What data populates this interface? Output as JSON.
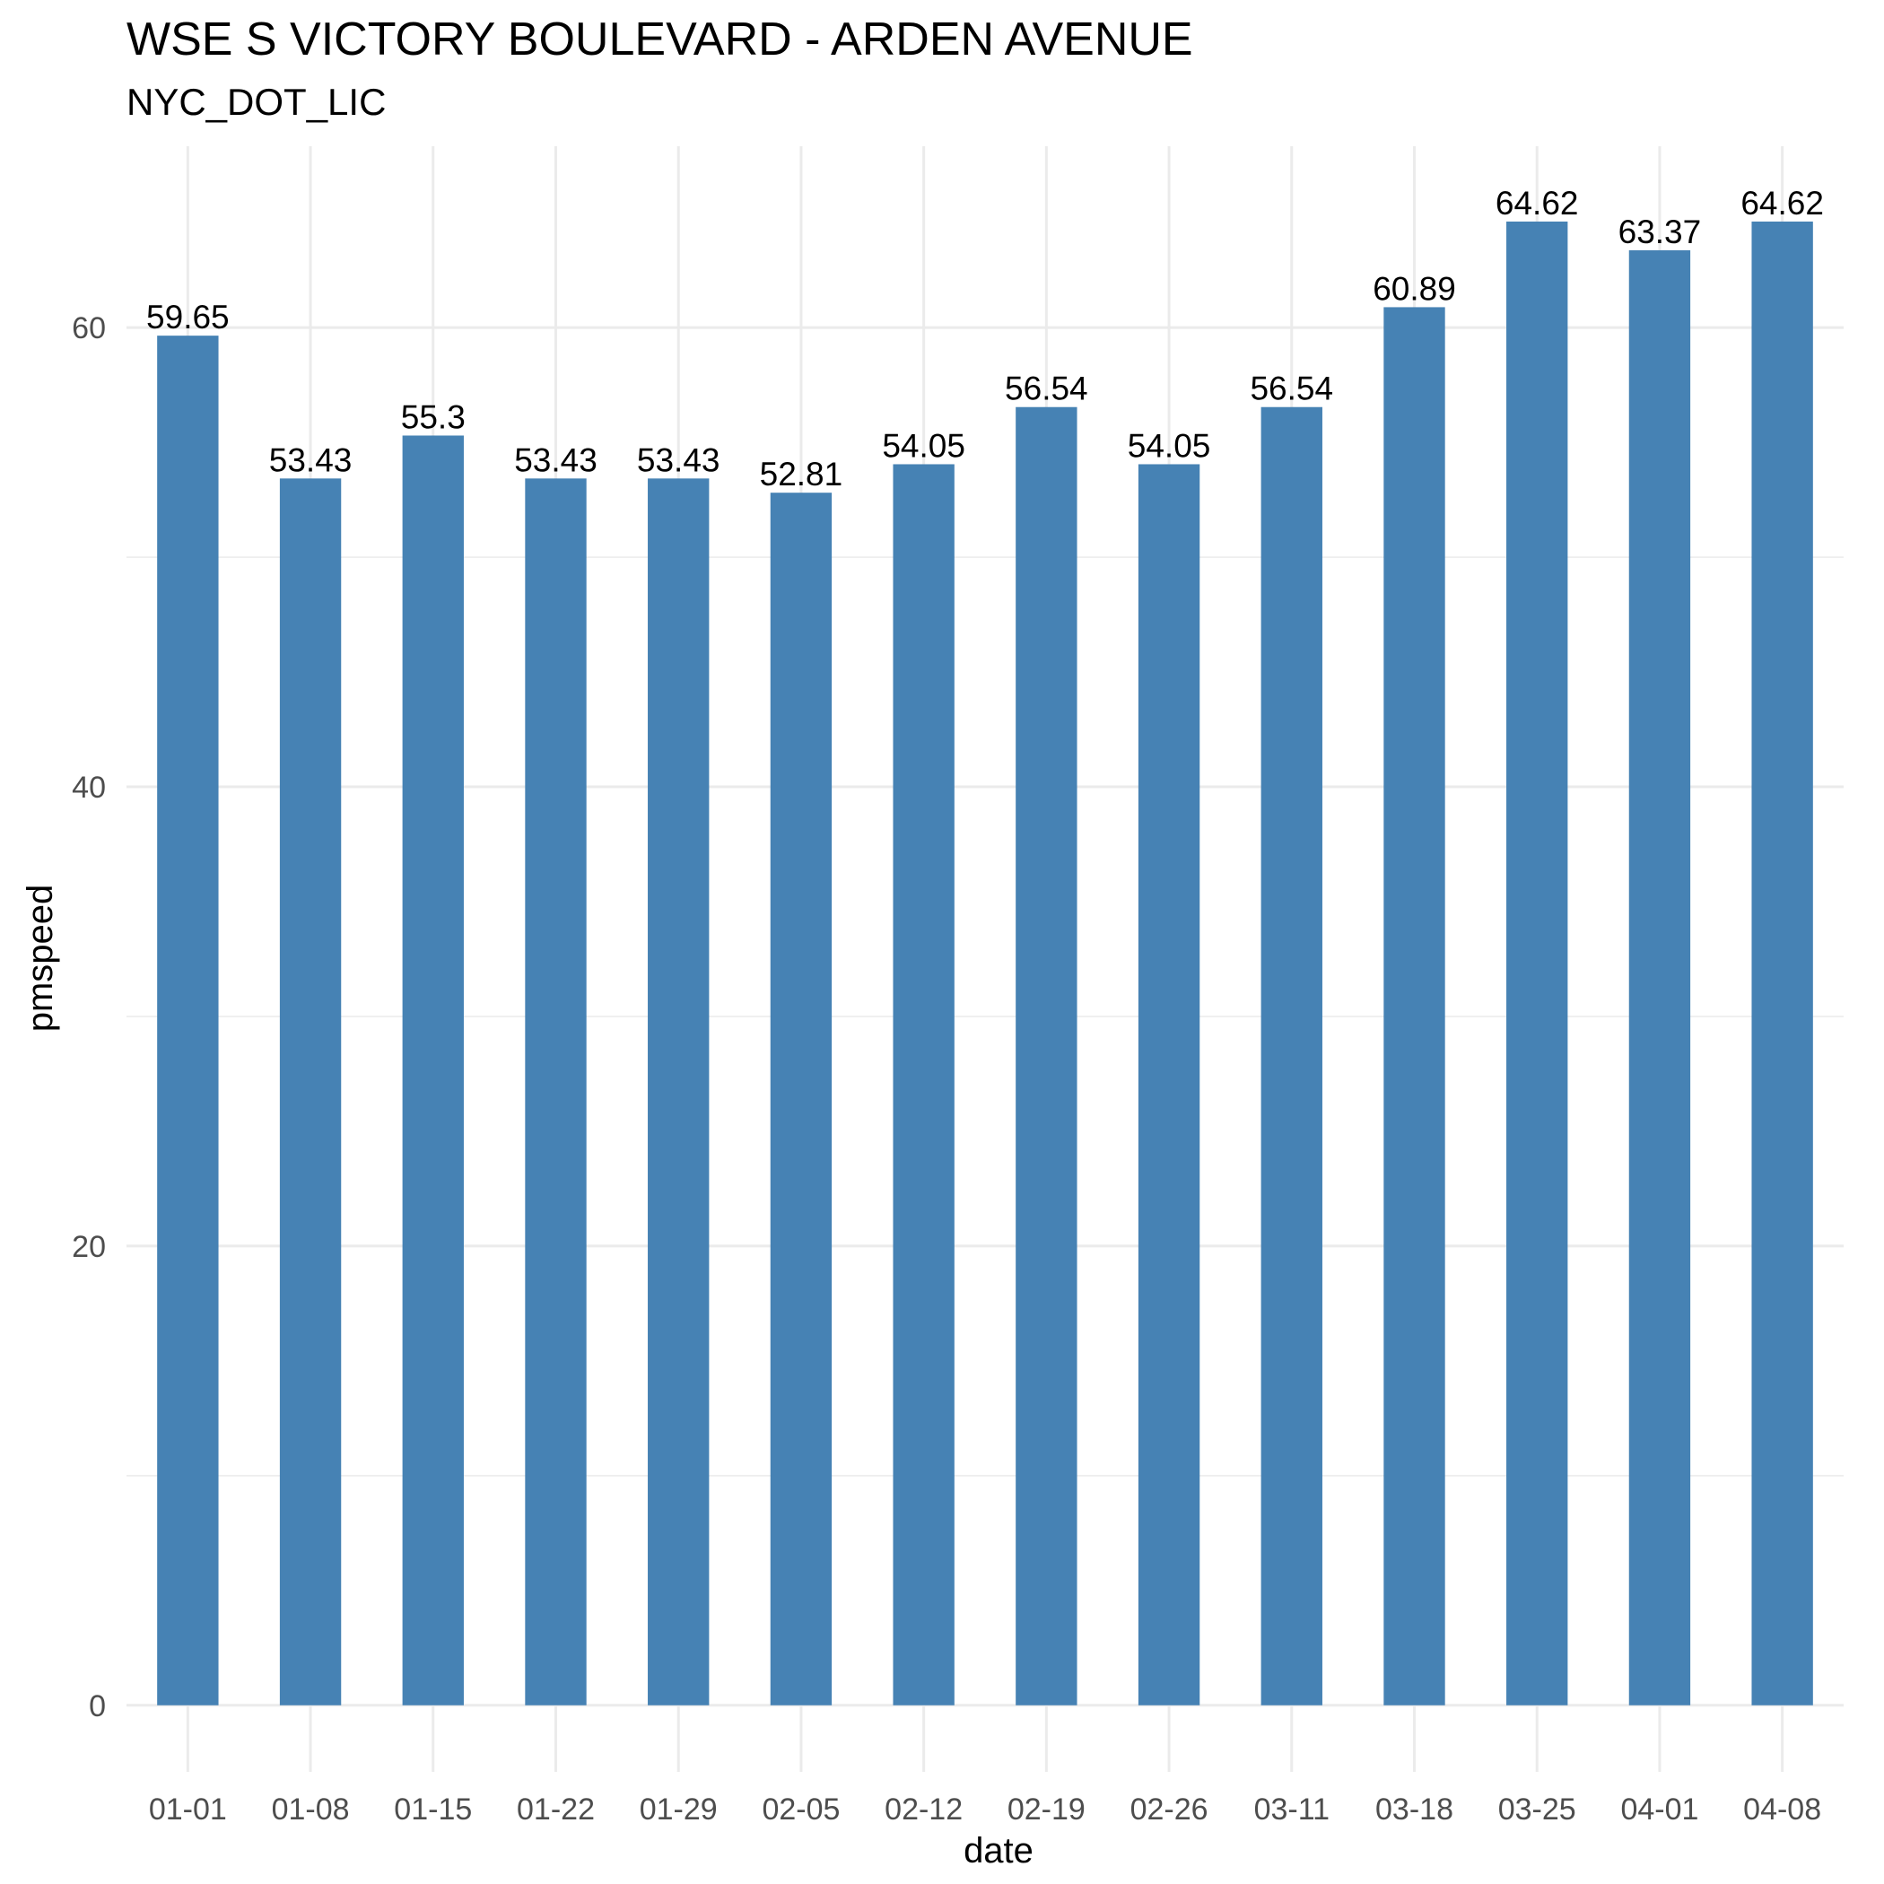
{
  "chart_data": {
    "type": "bar",
    "title": "WSE S VICTORY BOULEVARD - ARDEN AVENUE",
    "subtitle": "NYC_DOT_LIC",
    "xlabel": "date",
    "ylabel": "pmspeed",
    "categories": [
      "01-01",
      "01-08",
      "01-15",
      "01-22",
      "01-29",
      "02-05",
      "02-12",
      "02-19",
      "02-26",
      "03-11",
      "03-18",
      "03-25",
      "04-01",
      "04-08"
    ],
    "values": [
      59.65,
      53.43,
      55.3,
      53.43,
      53.43,
      52.81,
      54.05,
      56.54,
      54.05,
      56.54,
      60.89,
      64.62,
      63.37,
      64.62
    ],
    "data_labels": [
      "59.65",
      "53.43",
      "55.3",
      "53.43",
      "53.43",
      "52.81",
      "54.05",
      "56.54",
      "54.05",
      "56.54",
      "60.89",
      "64.62",
      "63.37",
      "64.62"
    ],
    "y_ticks": [
      0,
      20,
      40,
      60
    ],
    "ylim": [
      -2.9,
      67.9
    ],
    "grid": true,
    "legend": "none",
    "bar_color": "#4682B4",
    "grid_color": "#EBEBEB"
  }
}
